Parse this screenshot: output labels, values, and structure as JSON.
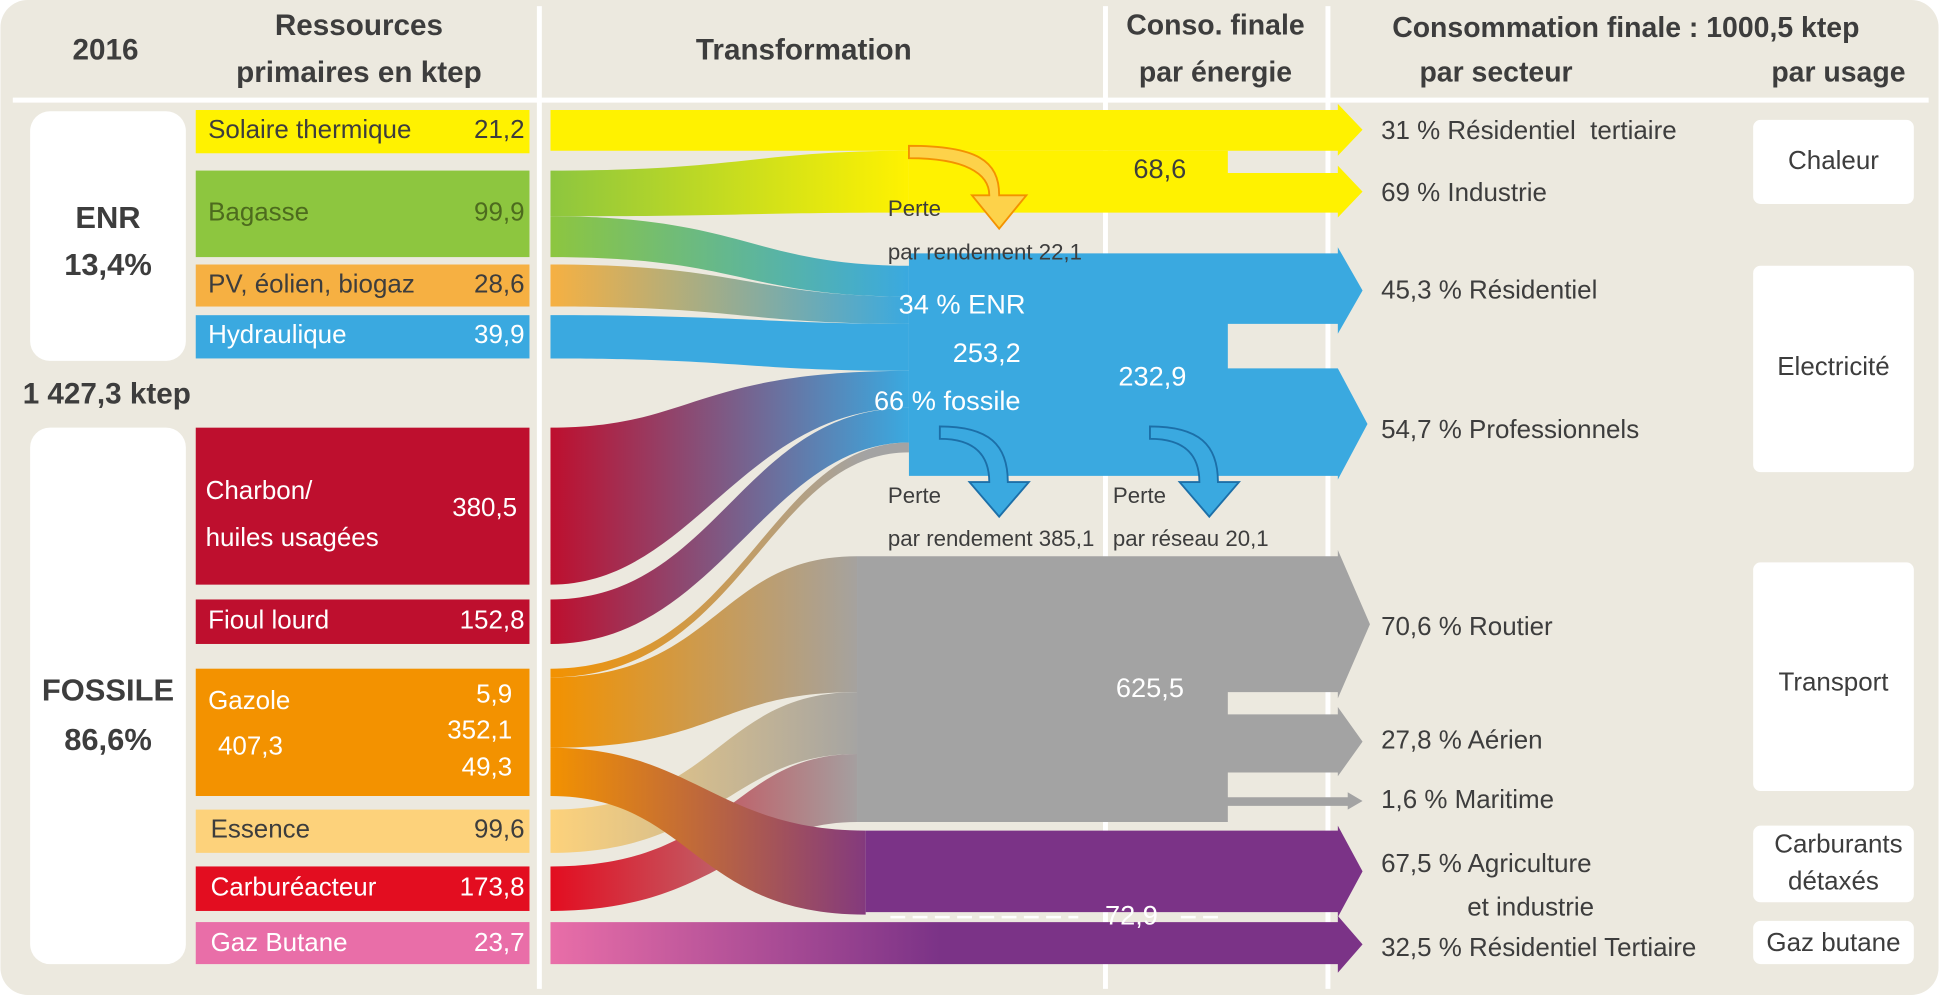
{
  "header": {
    "year": "2016",
    "resources": [
      "Ressources",
      "primaires en ktep"
    ],
    "transformation": "Transformation",
    "conso_energie": [
      "Conso. finale",
      "par énergie"
    ],
    "conso_finale": "Consommation finale : 1000,5 ktep",
    "par_secteur": "par secteur",
    "par_usage": "par usage"
  },
  "groups": [
    {
      "name": "ENR",
      "share": "13,4%"
    },
    {
      "name": "FOSSILE",
      "share": "86,6%"
    }
  ],
  "total": "1 427,3 ktep",
  "resources": [
    {
      "label": "Solaire thermique",
      "value": "21,2"
    },
    {
      "label": "Bagasse",
      "value": "99,9"
    },
    {
      "label": "PV, éolien, biogaz",
      "value": "28,6"
    },
    {
      "label": "Hydraulique",
      "value": "39,9"
    },
    {
      "label": [
        "Charbon/",
        "huiles usagées"
      ],
      "value": "380,5"
    },
    {
      "label": "Fioul lourd",
      "value": "152,8"
    },
    {
      "label": "Gazole",
      "value": "407,3",
      "parts": [
        "5,9",
        "352,1",
        "49,3"
      ]
    },
    {
      "label": "Essence",
      "value": "99,6"
    },
    {
      "label": "Carburéacteur",
      "value": "173,8"
    },
    {
      "label": "Gaz Butane",
      "value": "23,7"
    }
  ],
  "transformation": {
    "loss_heat": [
      "Perte",
      "par rendement 22,1"
    ],
    "mix": [
      "34 % ENR",
      "253,2",
      "66 % fossile"
    ],
    "loss_elec": [
      "Perte",
      "par rendement 385,1"
    ],
    "loss_grid": [
      "Perte",
      "par réseau 20,1"
    ]
  },
  "conso_energie": [
    "68,6",
    "232,9",
    "625,5",
    "72,9"
  ],
  "sectors": [
    "31 % Résidentiel  tertiaire",
    "69 % Industrie",
    "45,3 % Résidentiel",
    "54,7 % Professionnels",
    "70,6 % Routier",
    "27,8 % Aérien",
    "1,6 % Maritime",
    [
      "67,5 % Agriculture",
      "et industrie"
    ],
    "32,5 % Résidentiel Tertiaire"
  ],
  "usages": [
    "Chaleur",
    "Electricité",
    "Transport",
    [
      "Carburants",
      "détaxés"
    ],
    "Gaz butane"
  ]
}
